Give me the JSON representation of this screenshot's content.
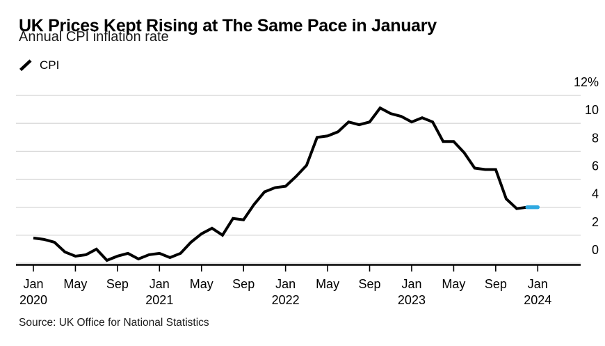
{
  "header": {
    "title": "UK Prices Kept Rising at The Same Pace in January",
    "subtitle": "Annual CPI inflation rate"
  },
  "legend": {
    "series_label": "CPI"
  },
  "source": {
    "text": "Source: UK Office for National Statistics"
  },
  "colors": {
    "line": "#000000",
    "highlight": "#2FA9E1",
    "grid": "#D9D9D9",
    "axis": "#000000",
    "text": "#000000"
  },
  "chart_data": {
    "type": "line",
    "title": "UK Prices Kept Rising at The Same Pace in January",
    "subtitle": "Annual CPI inflation rate",
    "unit": "%",
    "frequency": "monthly",
    "x_start": "Jan 2020",
    "x_end": "Jan 2024",
    "ylim": [
      0,
      12
    ],
    "grid": "horizontal",
    "legend_position": "top-left",
    "y_ticks": {
      "values": [
        0,
        2,
        4,
        6,
        8,
        10,
        12
      ],
      "labels": [
        "0",
        "2",
        "4",
        "6",
        "8",
        "10",
        "12%"
      ]
    },
    "x_ticks": [
      {
        "label": "Jan",
        "year": "2020",
        "month_index": 0
      },
      {
        "label": "May",
        "year": "",
        "month_index": 4
      },
      {
        "label": "Sep",
        "year": "",
        "month_index": 8
      },
      {
        "label": "Jan",
        "year": "2021",
        "month_index": 12
      },
      {
        "label": "May",
        "year": "",
        "month_index": 16
      },
      {
        "label": "Sep",
        "year": "",
        "month_index": 20
      },
      {
        "label": "Jan",
        "year": "2022",
        "month_index": 24
      },
      {
        "label": "May",
        "year": "",
        "month_index": 28
      },
      {
        "label": "Sep",
        "year": "",
        "month_index": 32
      },
      {
        "label": "Jan",
        "year": "2023",
        "month_index": 36
      },
      {
        "label": "May",
        "year": "",
        "month_index": 40
      },
      {
        "label": "Sep",
        "year": "",
        "month_index": 44
      },
      {
        "label": "Jan",
        "year": "2024",
        "month_index": 48
      }
    ],
    "series": [
      {
        "name": "CPI",
        "values": [
          1.8,
          1.7,
          1.5,
          0.8,
          0.5,
          0.6,
          1.0,
          0.2,
          0.5,
          0.7,
          0.3,
          0.6,
          0.7,
          0.4,
          0.7,
          1.5,
          2.1,
          2.5,
          2.0,
          3.2,
          3.1,
          4.2,
          5.1,
          5.4,
          5.5,
          6.2,
          7.0,
          9.0,
          9.1,
          9.4,
          10.1,
          9.9,
          10.1,
          11.1,
          10.7,
          10.5,
          10.1,
          10.4,
          10.1,
          8.7,
          8.7,
          7.9,
          6.8,
          6.7,
          6.7,
          4.6,
          3.9,
          4.0,
          4.0
        ]
      }
    ],
    "highlight": {
      "last_segment": true,
      "color": "#2FA9E1"
    }
  }
}
